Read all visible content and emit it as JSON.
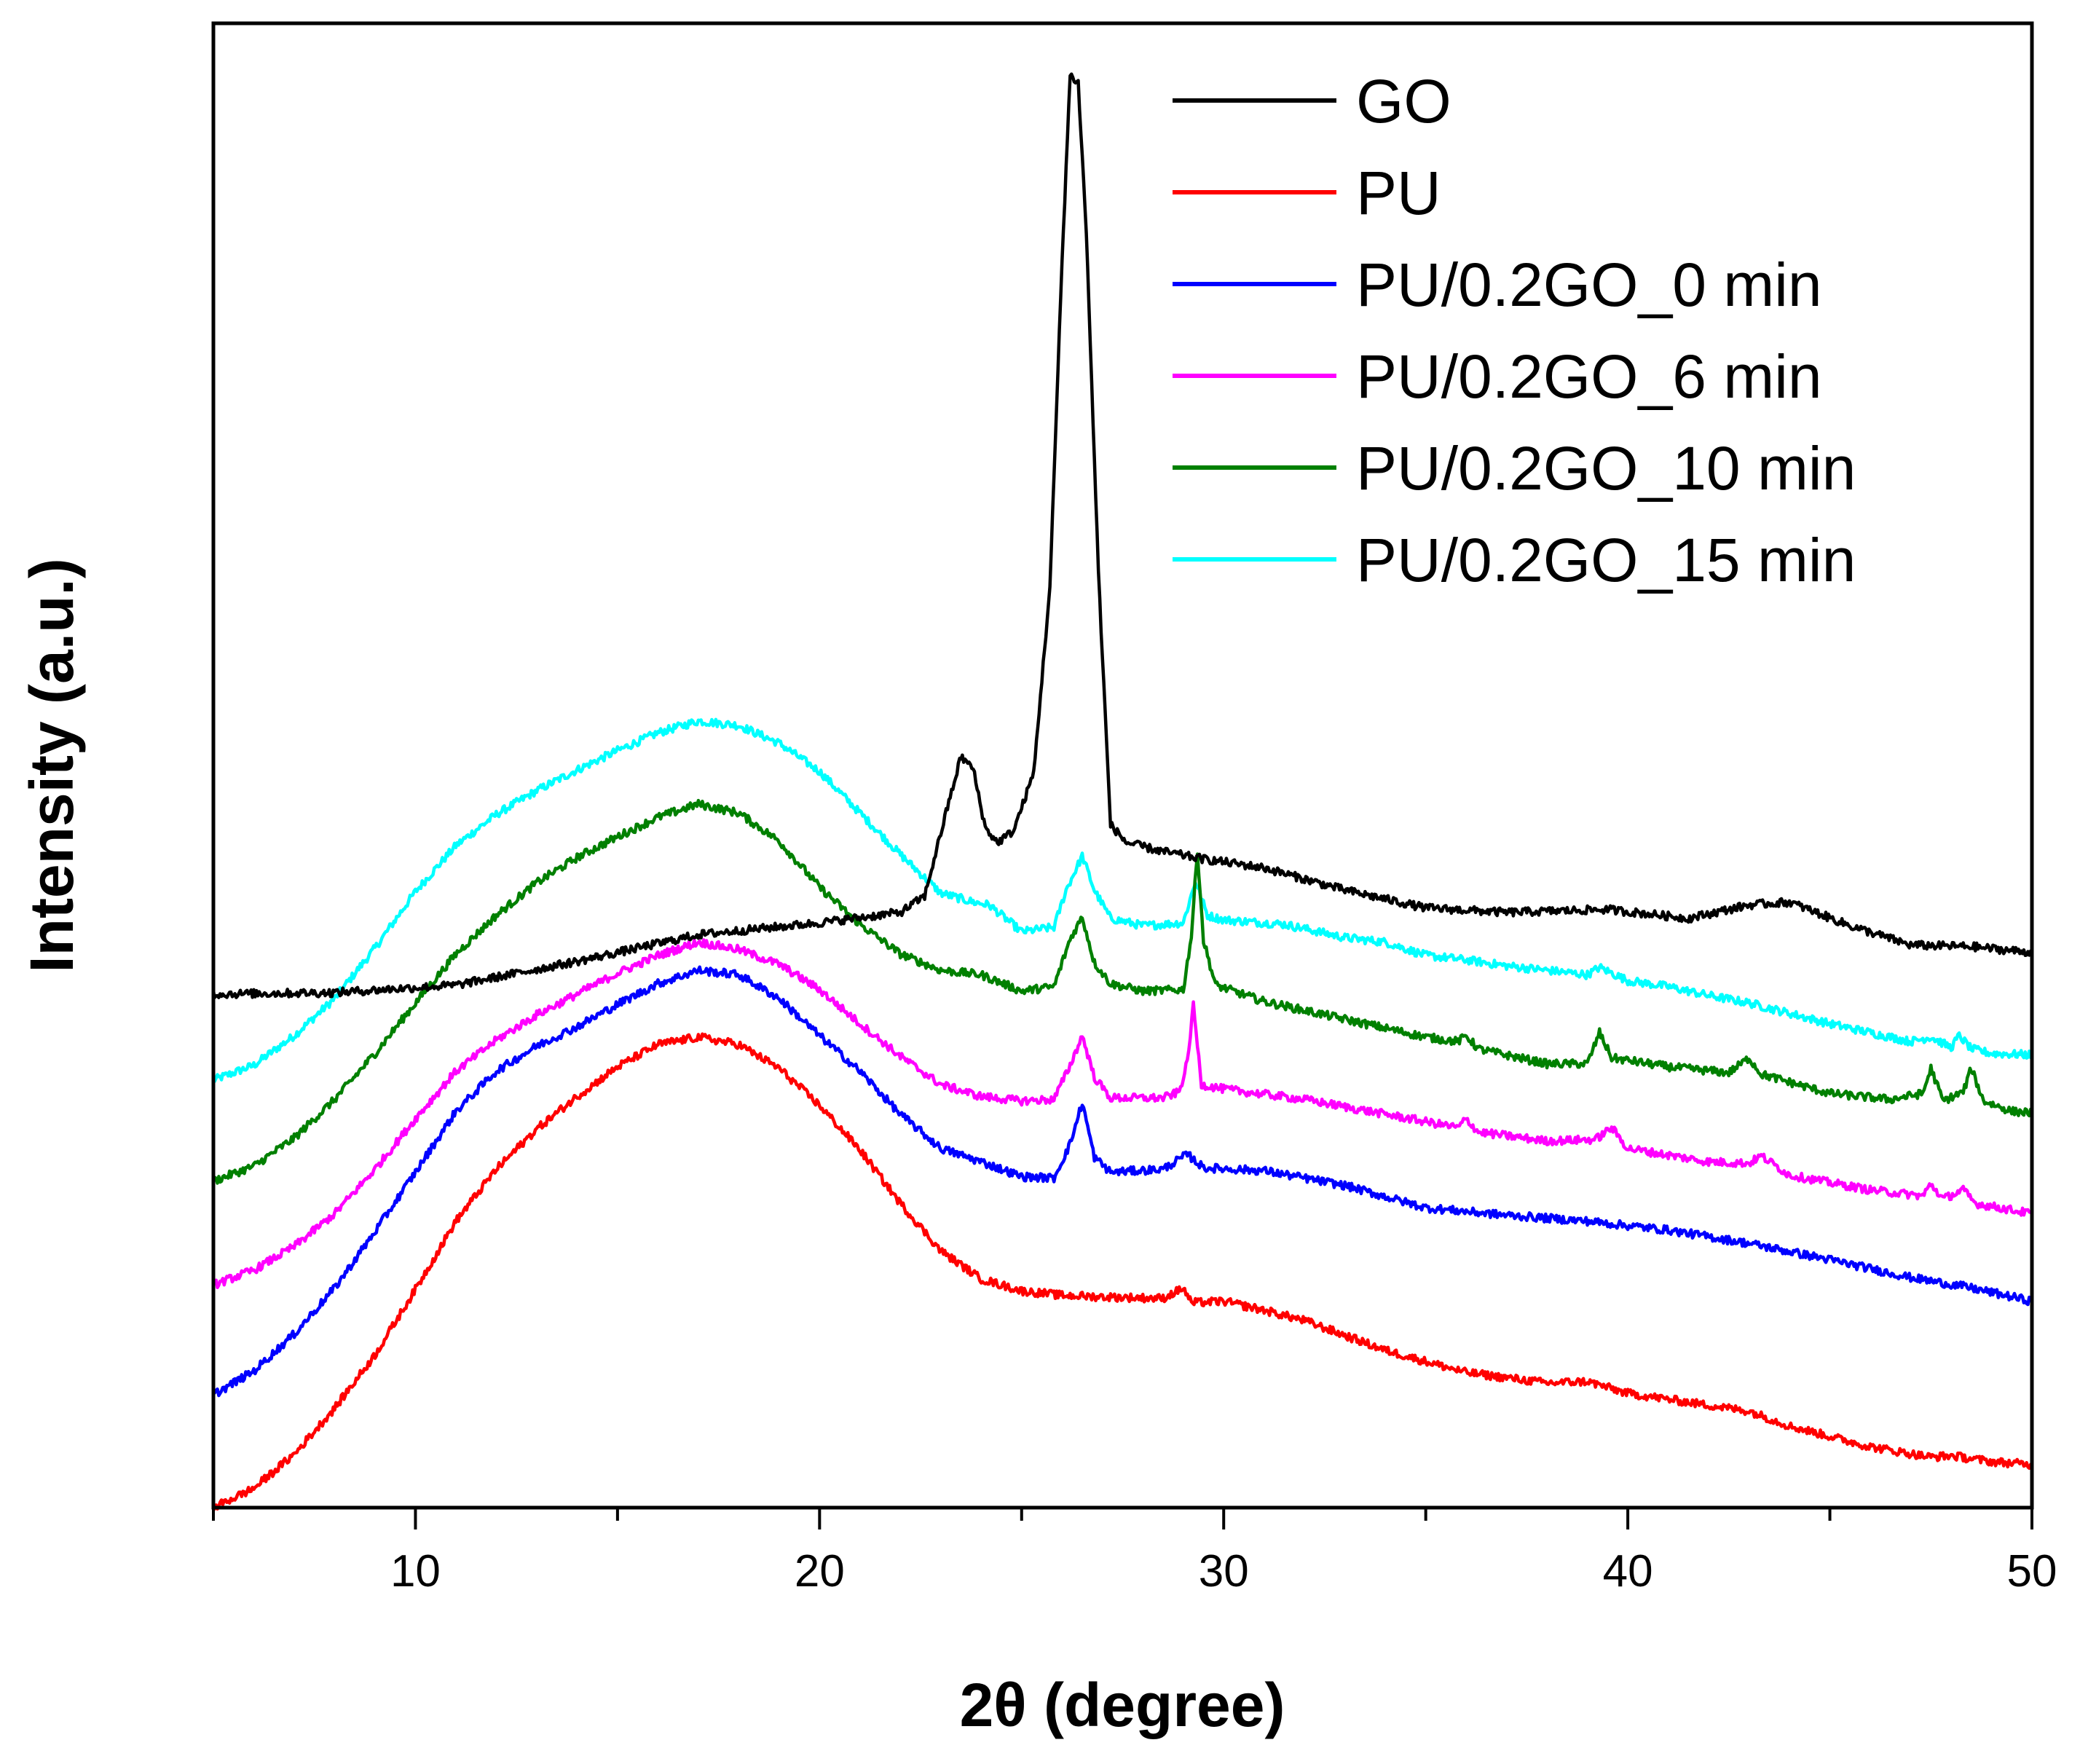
{
  "chart_data": {
    "type": "line",
    "xlabel": "2θ (degree)",
    "ylabel": "Intensity (a.u.)",
    "xlim": [
      5,
      50
    ],
    "ylim": [
      0,
      100
    ],
    "xticks": [
      10,
      20,
      30,
      40,
      50
    ],
    "y_tick_labels_shown": false,
    "grid": false,
    "legend_position": "top-right",
    "series": [
      {
        "name": "GO",
        "color": "#000000",
        "points": [
          [
            5,
            34.6
          ],
          [
            8,
            34.7
          ],
          [
            11,
            35.2
          ],
          [
            14,
            36.8
          ],
          [
            17,
            38.6
          ],
          [
            20,
            39.4
          ],
          [
            22,
            40.1
          ],
          [
            22.6,
            41.2
          ],
          [
            23.1,
            46.5
          ],
          [
            23.5,
            50.6
          ],
          [
            23.8,
            49.8
          ],
          [
            24.1,
            45.8
          ],
          [
            24.4,
            44.8
          ],
          [
            24.8,
            45.6
          ],
          [
            25.3,
            49.5
          ],
          [
            25.7,
            62
          ],
          [
            26.0,
            84
          ],
          [
            26.2,
            96.5
          ],
          [
            26.4,
            96
          ],
          [
            26.6,
            86
          ],
          [
            26.9,
            63
          ],
          [
            27.2,
            46
          ],
          [
            27.6,
            44.8
          ],
          [
            28.5,
            44.2
          ],
          [
            29.5,
            43.7
          ],
          [
            31,
            43.1
          ],
          [
            33,
            41.6
          ],
          [
            35,
            40.4
          ],
          [
            37,
            40.1
          ],
          [
            39.5,
            40.3
          ],
          [
            41.5,
            39.7
          ],
          [
            43,
            40.6
          ],
          [
            44,
            40.8
          ],
          [
            45.5,
            39.2
          ],
          [
            47,
            37.9
          ],
          [
            48.5,
            37.8
          ],
          [
            50,
            37.4
          ]
        ]
      },
      {
        "name": "PU",
        "color": "#ff0000",
        "points": [
          [
            5,
            0
          ],
          [
            6,
            1.3
          ],
          [
            7,
            3.6
          ],
          [
            8,
            6.7
          ],
          [
            9,
            10.3
          ],
          [
            10,
            14.7
          ],
          [
            11,
            19.3
          ],
          [
            12,
            22.8
          ],
          [
            13,
            25.5
          ],
          [
            14,
            27.7
          ],
          [
            15,
            29.7
          ],
          [
            16,
            31.2
          ],
          [
            17,
            31.7
          ],
          [
            18,
            31.2
          ],
          [
            19,
            29.6
          ],
          [
            20,
            27.1
          ],
          [
            21,
            24.1
          ],
          [
            22,
            20.5
          ],
          [
            23,
            17.3
          ],
          [
            24,
            15.4
          ],
          [
            25,
            14.6
          ],
          [
            26,
            14.3
          ],
          [
            27,
            14.2
          ],
          [
            28.5,
            14.1
          ],
          [
            29,
            14.8
          ],
          [
            29.2,
            13.8
          ],
          [
            30,
            13.9
          ],
          [
            31,
            13.3
          ],
          [
            32,
            12.6
          ],
          [
            34,
            10.6
          ],
          [
            36,
            9.1
          ],
          [
            38,
            8.4
          ],
          [
            39,
            8.5
          ],
          [
            40,
            7.7
          ],
          [
            42,
            6.9
          ],
          [
            43,
            6.5
          ],
          [
            44,
            5.5
          ],
          [
            46,
            4.1
          ],
          [
            47.5,
            3.4
          ],
          [
            48,
            3.5
          ],
          [
            49,
            3.1
          ],
          [
            50,
            2.9
          ]
        ]
      },
      {
        "name": "PU/0.2GO_0 min",
        "color": "#0000ff",
        "points": [
          [
            5,
            7.6
          ],
          [
            6,
            9.2
          ],
          [
            7,
            11.7
          ],
          [
            8,
            14.8
          ],
          [
            9,
            18.6
          ],
          [
            10,
            22.6
          ],
          [
            11,
            26.7
          ],
          [
            12,
            29.4
          ],
          [
            13,
            31.1
          ],
          [
            14,
            32.4
          ],
          [
            15,
            33.9
          ],
          [
            16,
            35.3
          ],
          [
            17,
            36.2
          ],
          [
            18,
            35.9
          ],
          [
            19,
            34.3
          ],
          [
            20,
            31.8
          ],
          [
            21,
            29.4
          ],
          [
            22,
            26.5
          ],
          [
            23,
            24.2
          ],
          [
            24,
            23.3
          ],
          [
            25,
            22.3
          ],
          [
            25.8,
            22.2
          ],
          [
            26.2,
            24.5
          ],
          [
            26.5,
            27.3
          ],
          [
            26.8,
            23.6
          ],
          [
            27.2,
            22.6
          ],
          [
            28.5,
            22.8
          ],
          [
            29.1,
            23.8
          ],
          [
            29.5,
            22.9
          ],
          [
            31,
            22.7
          ],
          [
            33,
            21.7
          ],
          [
            35,
            20.2
          ],
          [
            37,
            19.7
          ],
          [
            39,
            19.3
          ],
          [
            41,
            18.7
          ],
          [
            43,
            17.8
          ],
          [
            45,
            16.7
          ],
          [
            47,
            15.5
          ],
          [
            48.3,
            14.9
          ],
          [
            49,
            14.5
          ],
          [
            50,
            13.9
          ]
        ]
      },
      {
        "name": "PU/0.2GO_6 min",
        "color": "#ff00ff",
        "points": [
          [
            5,
            15.0
          ],
          [
            6,
            16.0
          ],
          [
            7,
            17.6
          ],
          [
            8,
            19.8
          ],
          [
            9,
            22.8
          ],
          [
            10,
            26.2
          ],
          [
            11,
            29.4
          ],
          [
            12,
            31.5
          ],
          [
            13,
            33.2
          ],
          [
            14,
            34.6
          ],
          [
            15,
            36.0
          ],
          [
            16,
            37.2
          ],
          [
            17,
            38.1
          ],
          [
            18,
            37.6
          ],
          [
            19,
            36.6
          ],
          [
            20,
            34.9
          ],
          [
            21,
            32.6
          ],
          [
            22,
            30.4
          ],
          [
            23,
            28.5
          ],
          [
            24,
            27.7
          ],
          [
            25,
            27.4
          ],
          [
            25.8,
            27.5
          ],
          [
            26.2,
            29.8
          ],
          [
            26.5,
            31.8
          ],
          [
            26.8,
            29.0
          ],
          [
            27.2,
            27.6
          ],
          [
            28.5,
            27.6
          ],
          [
            28.9,
            28.0
          ],
          [
            29.1,
            30.0
          ],
          [
            29.25,
            33.8
          ],
          [
            29.45,
            28.5
          ],
          [
            30,
            28.2
          ],
          [
            32,
            27.5
          ],
          [
            34,
            26.5
          ],
          [
            35.8,
            25.6
          ],
          [
            36,
            26.2
          ],
          [
            36.3,
            25.3
          ],
          [
            38,
            24.7
          ],
          [
            39.2,
            24.8
          ],
          [
            39.6,
            25.6
          ],
          [
            40,
            24.2
          ],
          [
            42,
            23.3
          ],
          [
            43,
            23.2
          ],
          [
            43.3,
            23.7
          ],
          [
            44,
            22.4
          ],
          [
            46,
            21.4
          ],
          [
            47.3,
            21.0
          ],
          [
            47.5,
            21.8
          ],
          [
            47.8,
            20.8
          ],
          [
            48.3,
            21.4
          ],
          [
            48.6,
            20.5
          ],
          [
            50,
            19.8
          ]
        ]
      },
      {
        "name": "PU/0.2GO_10 min",
        "color": "#008000",
        "points": [
          [
            5,
            22.0
          ],
          [
            6,
            23.0
          ],
          [
            7,
            24.9
          ],
          [
            8,
            27.5
          ],
          [
            9,
            30.6
          ],
          [
            10,
            34.0
          ],
          [
            11,
            37.3
          ],
          [
            12,
            39.9
          ],
          [
            13,
            42.1
          ],
          [
            14,
            43.8
          ],
          [
            15,
            45.2
          ],
          [
            16,
            46.5
          ],
          [
            17,
            47.4
          ],
          [
            18,
            46.8
          ],
          [
            19,
            44.9
          ],
          [
            20,
            41.8
          ],
          [
            21,
            39.3
          ],
          [
            22,
            37.3
          ],
          [
            23,
            36.2
          ],
          [
            24,
            35.9
          ],
          [
            25,
            34.8
          ],
          [
            25.8,
            35.1
          ],
          [
            26.2,
            38.3
          ],
          [
            26.5,
            39.8
          ],
          [
            26.8,
            36.7
          ],
          [
            27.2,
            35.3
          ],
          [
            28,
            34.8
          ],
          [
            29.0,
            34.9
          ],
          [
            29.2,
            38.5
          ],
          [
            29.35,
            44.3
          ],
          [
            29.5,
            38.2
          ],
          [
            29.8,
            35.2
          ],
          [
            31,
            34.1
          ],
          [
            33,
            32.9
          ],
          [
            35,
            31.7
          ],
          [
            35.8,
            31.4
          ],
          [
            36,
            31.8
          ],
          [
            36.3,
            30.9
          ],
          [
            38,
            29.9
          ],
          [
            39,
            29.9
          ],
          [
            39.3,
            32.0
          ],
          [
            39.6,
            30.3
          ],
          [
            41,
            29.7
          ],
          [
            42.5,
            29.3
          ],
          [
            43,
            30.3
          ],
          [
            43.3,
            29.2
          ],
          [
            45,
            27.9
          ],
          [
            46.5,
            27.5
          ],
          [
            47.3,
            27.9
          ],
          [
            47.5,
            29.6
          ],
          [
            47.8,
            27.4
          ],
          [
            48.3,
            28.0
          ],
          [
            48.5,
            29.6
          ],
          [
            48.8,
            27.4
          ],
          [
            49.5,
            26.7
          ],
          [
            50,
            26.6
          ]
        ]
      },
      {
        "name": "PU/0.2GO_15 min",
        "color": "#00ffff",
        "points": [
          [
            5,
            28.8
          ],
          [
            6,
            29.8
          ],
          [
            7,
            31.8
          ],
          [
            8,
            34.3
          ],
          [
            9,
            37.7
          ],
          [
            10,
            41.5
          ],
          [
            11,
            44.6
          ],
          [
            12,
            46.7
          ],
          [
            13,
            48.3
          ],
          [
            14,
            49.7
          ],
          [
            15,
            51.0
          ],
          [
            16,
            52.2
          ],
          [
            17,
            53.0
          ],
          [
            18,
            52.7
          ],
          [
            19,
            51.5
          ],
          [
            20,
            49.6
          ],
          [
            21,
            46.8
          ],
          [
            22,
            44.0
          ],
          [
            23,
            41.4
          ],
          [
            23.8,
            40.8
          ],
          [
            24.2,
            40.6
          ],
          [
            25,
            38.8
          ],
          [
            25.8,
            39.1
          ],
          [
            26.1,
            41.6
          ],
          [
            26.5,
            43.9
          ],
          [
            26.8,
            41.6
          ],
          [
            27.2,
            39.7
          ],
          [
            28,
            39.2
          ],
          [
            29.0,
            39.4
          ],
          [
            29.3,
            42.2
          ],
          [
            29.6,
            39.9
          ],
          [
            30,
            39.6
          ],
          [
            31.5,
            39.3
          ],
          [
            33,
            38.4
          ],
          [
            34,
            38.1
          ],
          [
            35,
            37.2
          ],
          [
            36,
            36.9
          ],
          [
            37,
            36.5
          ],
          [
            38,
            36.2
          ],
          [
            39,
            35.9
          ],
          [
            39.3,
            36.4
          ],
          [
            40,
            35.5
          ],
          [
            41,
            35.1
          ],
          [
            42,
            34.5
          ],
          [
            43,
            34.0
          ],
          [
            44,
            33.3
          ],
          [
            45,
            32.6
          ],
          [
            46,
            32.0
          ],
          [
            47,
            31.4
          ],
          [
            47.5,
            31.7
          ],
          [
            48,
            31.0
          ],
          [
            48.2,
            31.8
          ],
          [
            48.5,
            30.9
          ],
          [
            49,
            30.6
          ],
          [
            50,
            30.5
          ]
        ]
      }
    ]
  }
}
